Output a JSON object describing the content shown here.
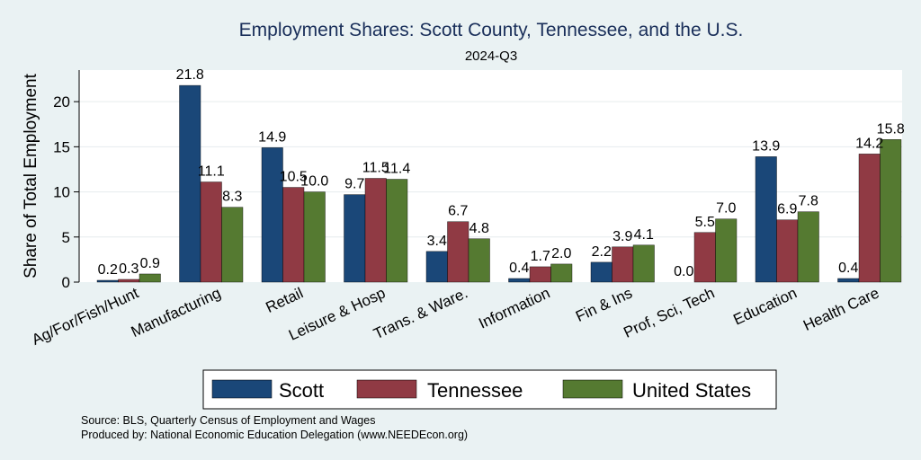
{
  "chart_data": {
    "type": "bar",
    "title": "Employment Shares: Scott County, Tennessee, and the U.S.",
    "subtitle": "2024-Q3",
    "ylabel": "Share of Total Employment",
    "xlabel": "",
    "ylim": [
      0,
      23.5
    ],
    "yticks": [
      0,
      5,
      10,
      15,
      20
    ],
    "grid": true,
    "legend_position": "bottom",
    "categories": [
      "Ag/For/Fish/Hunt",
      "Manufacturing",
      "Retail",
      "Leisure & Hosp",
      "Trans. & Ware.",
      "Information",
      "Fin & Ins",
      "Prof, Sci, Tech",
      "Education",
      "Health Care"
    ],
    "series": [
      {
        "name": "Scott",
        "color": "#1a4778",
        "values": [
          0.2,
          21.8,
          14.9,
          9.7,
          3.4,
          0.4,
          2.2,
          0.0,
          13.9,
          0.4
        ],
        "labels": [
          "0.2",
          "21.8",
          "14.9",
          "9.7",
          "3.4",
          "0.4",
          "2.2",
          "0.0",
          "13.9",
          "0.4"
        ]
      },
      {
        "name": "Tennessee",
        "color": "#903a44",
        "values": [
          0.3,
          11.1,
          10.5,
          11.5,
          6.7,
          1.7,
          3.9,
          5.5,
          6.9,
          14.2
        ],
        "labels": [
          "0.3",
          "11.1",
          "10.5",
          "11.5",
          "6.7",
          "1.7",
          "3.9",
          "5.5",
          "6.9",
          "14.2"
        ]
      },
      {
        "name": "United States",
        "color": "#557a31",
        "values": [
          0.9,
          8.3,
          10.0,
          11.4,
          4.8,
          2.0,
          4.1,
          7.0,
          7.8,
          15.8
        ],
        "labels": [
          "0.9",
          "8.3",
          "10.0",
          "11.4",
          "4.8",
          "2.0",
          "4.1",
          "7.0",
          "7.8",
          "15.8"
        ]
      }
    ]
  },
  "notes": {
    "source": "Source: BLS, Quarterly Census of Employment and Wages",
    "produced_by": "Produced by: National Economic Education Delegation (www.NEEDEcon.org)"
  }
}
